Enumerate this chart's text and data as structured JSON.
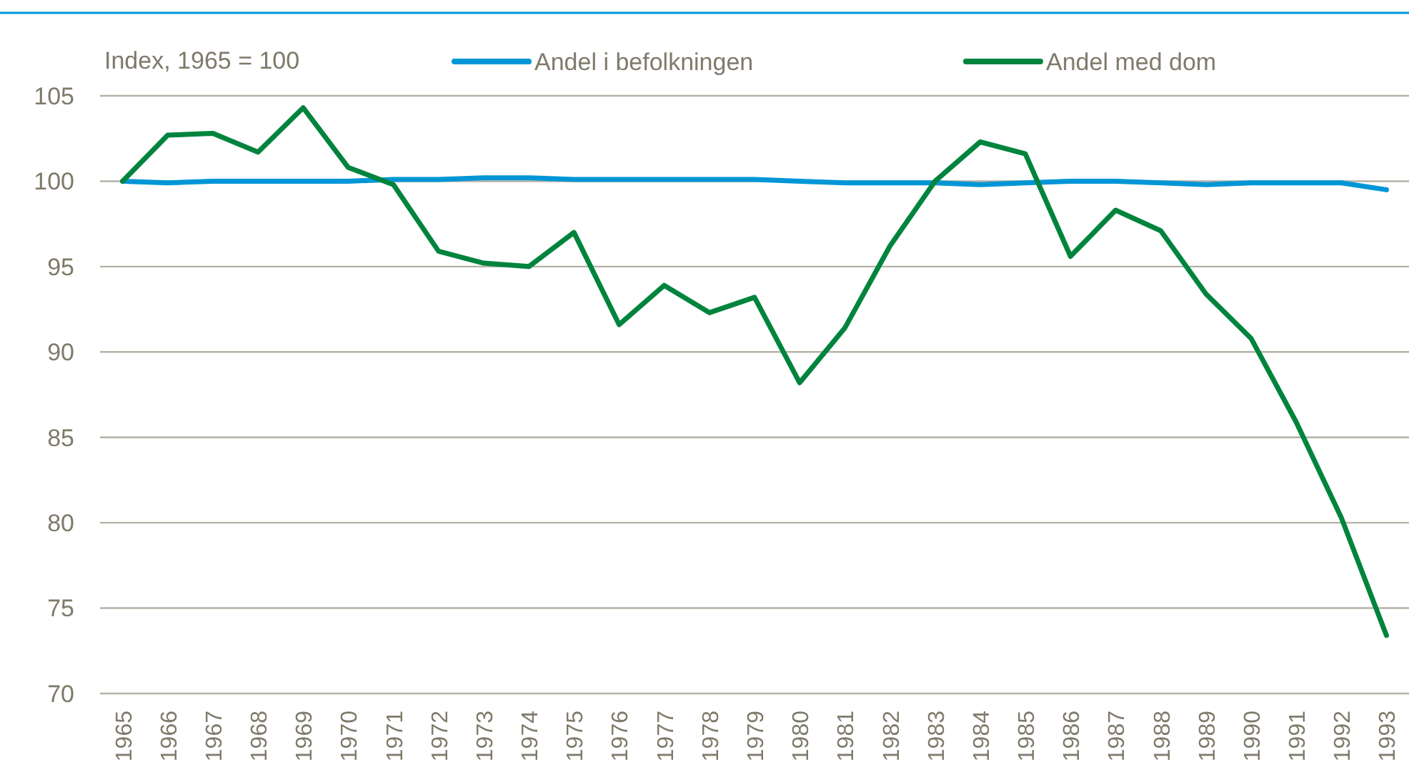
{
  "chart_data": {
    "type": "line",
    "ylabel": "Index, 1965 = 100",
    "categories": [
      "1965",
      "1966",
      "1967",
      "1968",
      "1969",
      "1970",
      "1971",
      "1972",
      "1973",
      "1974",
      "1975",
      "1976",
      "1977",
      "1978",
      "1979",
      "1980",
      "1981",
      "1982",
      "1983",
      "1984",
      "1985",
      "1986",
      "1987",
      "1988",
      "1989",
      "1990",
      "1991",
      "1992",
      "1993"
    ],
    "series": [
      {
        "name": "Andel i befolkningen",
        "color": "#0096d6",
        "values": [
          100,
          99.9,
          100,
          100,
          100,
          100,
          100.1,
          100.1,
          100.2,
          100.2,
          100.1,
          100.1,
          100.1,
          100.1,
          100.1,
          100,
          99.9,
          99.9,
          99.9,
          99.8,
          99.9,
          100,
          100,
          99.9,
          99.8,
          99.9,
          99.9,
          99.9,
          99.5
        ]
      },
      {
        "name": "Andel med dom",
        "color": "#00843d",
        "values": [
          100,
          102.7,
          102.8,
          101.7,
          104.3,
          100.8,
          99.8,
          95.9,
          95.2,
          95,
          97,
          91.6,
          93.9,
          92.3,
          93.2,
          88.2,
          91.4,
          96.2,
          100,
          102.3,
          101.6,
          95.6,
          98.3,
          97.1,
          93.4,
          90.8,
          85.9,
          80.3,
          73.4
        ]
      }
    ],
    "ylim": [
      70,
      105
    ],
    "yticks": [
      70,
      75,
      80,
      85,
      90,
      95,
      100,
      105
    ],
    "grid": "y",
    "legend": "top",
    "marker": "none",
    "line_style": "solid"
  }
}
